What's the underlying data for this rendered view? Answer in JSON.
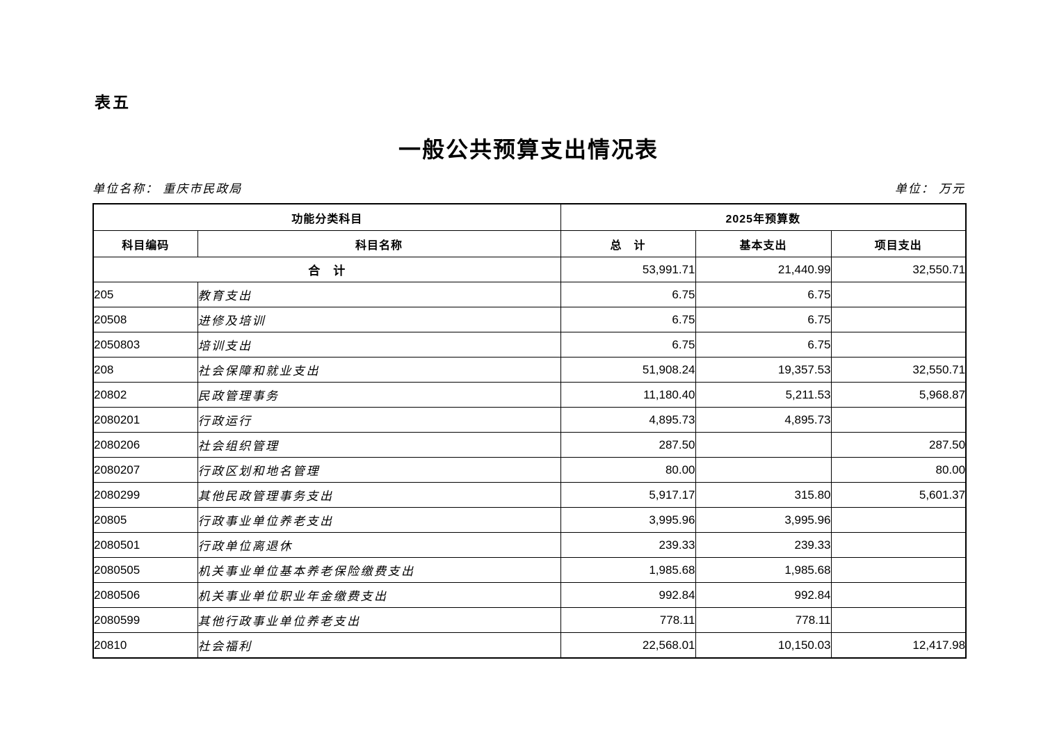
{
  "page": {
    "sheet_label": "表五",
    "title": "一般公共预算支出情况表",
    "unit_name": "单位名称： 重庆市民政局",
    "unit": "单位： 万元"
  },
  "colors": {
    "text": "#000000",
    "border": "#000000",
    "background": "#ffffff"
  },
  "table": {
    "header_row1": {
      "left_group": "功能分类科目",
      "right_group": "2025年预算数"
    },
    "header_row2": {
      "code": "科目编码",
      "name": "科目名称",
      "total": "总　计",
      "basic": "基本支出",
      "project": "项目支出"
    },
    "rows": [
      {
        "type": "total",
        "name": "合　计",
        "total": "53,991.71",
        "basic": "21,440.99",
        "project": "32,550.71"
      },
      {
        "code": "205",
        "level": 1,
        "name": "教育支出",
        "total": "6.75",
        "basic": "6.75",
        "project": ""
      },
      {
        "code": "20508",
        "level": 2,
        "name": "进修及培训",
        "total": "6.75",
        "basic": "6.75",
        "project": ""
      },
      {
        "code": "2050803",
        "level": 3,
        "name": "培训支出",
        "total": "6.75",
        "basic": "6.75",
        "project": ""
      },
      {
        "code": "208",
        "level": 1,
        "name": "社会保障和就业支出",
        "total": "51,908.24",
        "basic": "19,357.53",
        "project": "32,550.71"
      },
      {
        "code": "20802",
        "level": 2,
        "name": "民政管理事务",
        "total": "11,180.40",
        "basic": "5,211.53",
        "project": "5,968.87"
      },
      {
        "code": "2080201",
        "level": 3,
        "name": "行政运行",
        "total": "4,895.73",
        "basic": "4,895.73",
        "project": ""
      },
      {
        "code": "2080206",
        "level": 3,
        "name": "社会组织管理",
        "total": "287.50",
        "basic": "",
        "project": "287.50"
      },
      {
        "code": "2080207",
        "level": 3,
        "name": "行政区划和地名管理",
        "total": "80.00",
        "basic": "",
        "project": "80.00"
      },
      {
        "code": "2080299",
        "level": 3,
        "name": "其他民政管理事务支出",
        "total": "5,917.17",
        "basic": "315.80",
        "project": "5,601.37"
      },
      {
        "code": "20805",
        "level": 2,
        "name": "行政事业单位养老支出",
        "total": "3,995.96",
        "basic": "3,995.96",
        "project": ""
      },
      {
        "code": "2080501",
        "level": 3,
        "name": "行政单位离退休",
        "total": "239.33",
        "basic": "239.33",
        "project": ""
      },
      {
        "code": "2080505",
        "level": 3,
        "name": "机关事业单位基本养老保险缴费支出",
        "total": "1,985.68",
        "basic": "1,985.68",
        "project": ""
      },
      {
        "code": "2080506",
        "level": 3,
        "name": "机关事业单位职业年金缴费支出",
        "total": "992.84",
        "basic": "992.84",
        "project": ""
      },
      {
        "code": "2080599",
        "level": 3,
        "name": "其他行政事业单位养老支出",
        "total": "778.11",
        "basic": "778.11",
        "project": ""
      },
      {
        "code": "20810",
        "level": 2,
        "name": "社会福利",
        "total": "22,568.01",
        "basic": "10,150.03",
        "project": "12,417.98"
      }
    ]
  }
}
